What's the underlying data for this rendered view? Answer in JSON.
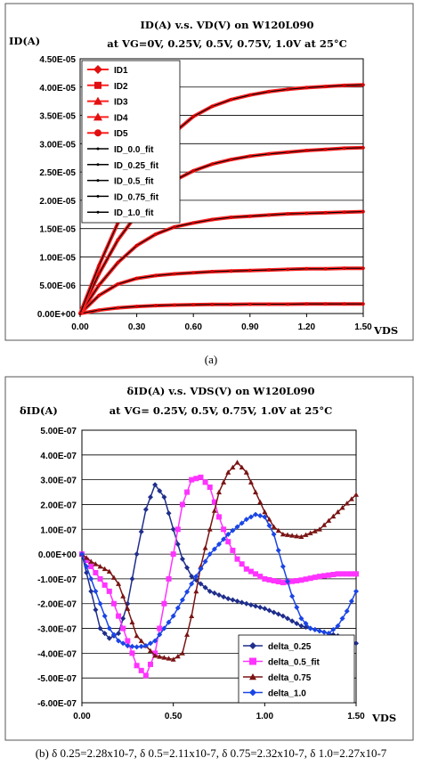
{
  "caption_a": "(a)",
  "caption_b": "(b) δ 0.25=2.28x10-7, δ 0.5=2.11x10-7, δ 0.75=2.32x10-7, δ 1.0=2.27x10-7",
  "chart_data": [
    {
      "type": "line",
      "title": "ID(A) v.s. VD(V) on W120L090",
      "subtitle": "at VG=0V, 0.25V, 0.5V, 0.75V, 1.0V at 25°C",
      "ylabel": "ID(A)",
      "xlabel": "VDS",
      "xlim": [
        0,
        1.5
      ],
      "ylim": [
        0,
        4.5e-05
      ],
      "x_ticks": [
        "0.00",
        "0.30",
        "0.60",
        "0.90",
        "1.20",
        "1.50"
      ],
      "y_ticks": [
        "0.00E+00",
        "5.00E-06",
        "1.00E-05",
        "1.50E-05",
        "2.00E-05",
        "2.50E-05",
        "3.00E-05",
        "3.50E-05",
        "4.00E-05",
        "4.50E-05"
      ],
      "grid": "horizontal",
      "legend_position": "top-left",
      "legend": [
        "ID1",
        "ID2",
        "ID3",
        "ID4",
        "ID5",
        "ID_0.0_fit",
        "ID_0.25_fit",
        "ID_0.5_fit",
        "ID_0.75_fit",
        "ID_1.0_fit"
      ],
      "x": [
        0.0,
        0.1,
        0.2,
        0.3,
        0.4,
        0.5,
        0.6,
        0.7,
        0.8,
        0.9,
        1.0,
        1.1,
        1.2,
        1.3,
        1.4,
        1.5
      ],
      "series": [
        {
          "name": "ID1",
          "values": [
            0,
            6e-07,
            1e-06,
            1.25e-06,
            1.4e-06,
            1.5e-06,
            1.55e-06,
            1.6e-06,
            1.6e-06,
            1.65e-06,
            1.65e-06,
            1.65e-06,
            1.7e-06,
            1.7e-06,
            1.7e-06,
            1.7e-06
          ]
        },
        {
          "name": "ID2",
          "values": [
            0,
            3.2e-06,
            5.2e-06,
            6.2e-06,
            6.7e-06,
            7e-06,
            7.2e-06,
            7.4e-06,
            7.5e-06,
            7.6e-06,
            7.7e-06,
            7.8e-06,
            7.9e-06,
            7.9e-06,
            8e-06,
            8e-06
          ]
        },
        {
          "name": "ID3",
          "values": [
            0,
            5e-06,
            9e-06,
            1.2e-05,
            1.4e-05,
            1.53e-05,
            1.6e-05,
            1.66e-05,
            1.7e-05,
            1.72e-05,
            1.74e-05,
            1.76e-05,
            1.77e-05,
            1.78e-05,
            1.79e-05,
            1.8e-05
          ]
        },
        {
          "name": "ID4",
          "values": [
            0,
            7e-06,
            1.3e-05,
            1.75e-05,
            2.1e-05,
            2.35e-05,
            2.52e-05,
            2.64e-05,
            2.72e-05,
            2.78e-05,
            2.82e-05,
            2.85e-05,
            2.88e-05,
            2.9e-05,
            2.92e-05,
            2.93e-05
          ]
        },
        {
          "name": "ID5",
          "values": [
            0,
            8.5e-06,
            1.6e-05,
            2.25e-05,
            2.8e-05,
            3.2e-05,
            3.48e-05,
            3.66e-05,
            3.78e-05,
            3.86e-05,
            3.92e-05,
            3.96e-05,
            3.99e-05,
            4.01e-05,
            4.03e-05,
            4.04e-05
          ]
        }
      ]
    },
    {
      "type": "line",
      "title": "δID(A) v.s. VDS(V) on W120L090",
      "subtitle": "at VG= 0.25V, 0.5V, 0.75V, 1.0V at 25°C",
      "ylabel": "δID(A)",
      "xlabel": "VDS",
      "xlim": [
        0,
        1.5
      ],
      "ylim": [
        -6e-07,
        5e-07
      ],
      "x_ticks": [
        "0.00",
        "0.50",
        "1.00",
        "1.50"
      ],
      "y_ticks": [
        "-6.00E-07",
        "-5.00E-07",
        "-4.00E-07",
        "-3.00E-07",
        "-2.00E-07",
        "-1.00E-07",
        "0.00E+00",
        "1.00E-07",
        "2.00E-07",
        "3.00E-07",
        "4.00E-07",
        "5.00E-07"
      ],
      "grid": "horizontal",
      "legend_position": "bottom-right",
      "series": [
        {
          "name": "delta_0.25",
          "color": "#1f2e8c",
          "x": [
            0,
            0.05,
            0.1,
            0.15,
            0.2,
            0.25,
            0.3,
            0.35,
            0.4,
            0.45,
            0.5,
            0.55,
            0.6,
            0.7,
            0.8,
            0.9,
            1.0,
            1.1,
            1.2,
            1.3,
            1.4,
            1.5
          ],
          "values": [
            0,
            -1.5e-07,
            -3e-07,
            -3.4e-07,
            -3.2e-07,
            -2e-07,
            0,
            1.8e-07,
            2.8e-07,
            2.3e-07,
            1e-07,
            -2e-08,
            -9e-08,
            -1.5e-07,
            -1.8e-07,
            -2e-07,
            -2.2e-07,
            -2.5e-07,
            -2.9e-07,
            -3.1e-07,
            -3.3e-07,
            -3.6e-07
          ]
        },
        {
          "name": "delta_0.5_fit",
          "color": "#ff33ff",
          "x": [
            0,
            0.05,
            0.1,
            0.15,
            0.2,
            0.25,
            0.3,
            0.35,
            0.4,
            0.45,
            0.5,
            0.55,
            0.6,
            0.65,
            0.7,
            0.75,
            0.8,
            0.85,
            0.9,
            1.0,
            1.1,
            1.2,
            1.3,
            1.4,
            1.5
          ],
          "values": [
            0,
            -5e-08,
            -1e-07,
            -1.5e-07,
            -2.5e-07,
            -3.5e-07,
            -4.5e-07,
            -4.9e-07,
            -4e-07,
            -2e-07,
            0,
            2e-07,
            3e-07,
            3.1e-07,
            2.7e-07,
            1.5e-07,
            5e-08,
            -2e-08,
            -6e-08,
            -1e-07,
            -1.15e-07,
            -1.05e-07,
            -9e-08,
            -8e-08,
            -8e-08
          ]
        },
        {
          "name": "delta_0.75",
          "color": "#7a1414",
          "x": [
            0,
            0.05,
            0.1,
            0.15,
            0.2,
            0.25,
            0.3,
            0.4,
            0.5,
            0.55,
            0.6,
            0.65,
            0.7,
            0.75,
            0.8,
            0.85,
            0.9,
            0.95,
            1.0,
            1.05,
            1.1,
            1.2,
            1.3,
            1.4,
            1.5
          ],
          "values": [
            0,
            -3e-08,
            -5e-08,
            -7e-08,
            -1.2e-07,
            -2.2e-07,
            -3.3e-07,
            -4.1e-07,
            -4.25e-07,
            -4e-07,
            -2.5e-07,
            -5e-08,
            1e-07,
            2.5e-07,
            3.3e-07,
            3.7e-07,
            3.3e-07,
            2.5e-07,
            1.7e-07,
            1.1e-07,
            8e-08,
            7e-08,
            1e-07,
            1.7e-07,
            2.4e-07
          ]
        },
        {
          "name": "delta_1.0",
          "color": "#1a45e6",
          "x": [
            0,
            0.05,
            0.1,
            0.15,
            0.2,
            0.25,
            0.3,
            0.35,
            0.4,
            0.5,
            0.6,
            0.7,
            0.8,
            0.9,
            0.95,
            1.0,
            1.05,
            1.1,
            1.15,
            1.2,
            1.25,
            1.3,
            1.35,
            1.4,
            1.45,
            1.5
          ],
          "values": [
            0,
            -1e-07,
            -2e-07,
            -3e-07,
            -3.5e-07,
            -3.7e-07,
            -3.75e-07,
            -3.7e-07,
            -3.5e-07,
            -2.5e-07,
            -1.2e-07,
            0,
            8e-08,
            1.4e-07,
            1.6e-07,
            1.5e-07,
            8e-08,
            -5e-08,
            -1.7e-07,
            -2.6e-07,
            -3e-07,
            -3.1e-07,
            -3.2e-07,
            -2.9e-07,
            -2.3e-07,
            -1.5e-07
          ]
        }
      ]
    }
  ]
}
